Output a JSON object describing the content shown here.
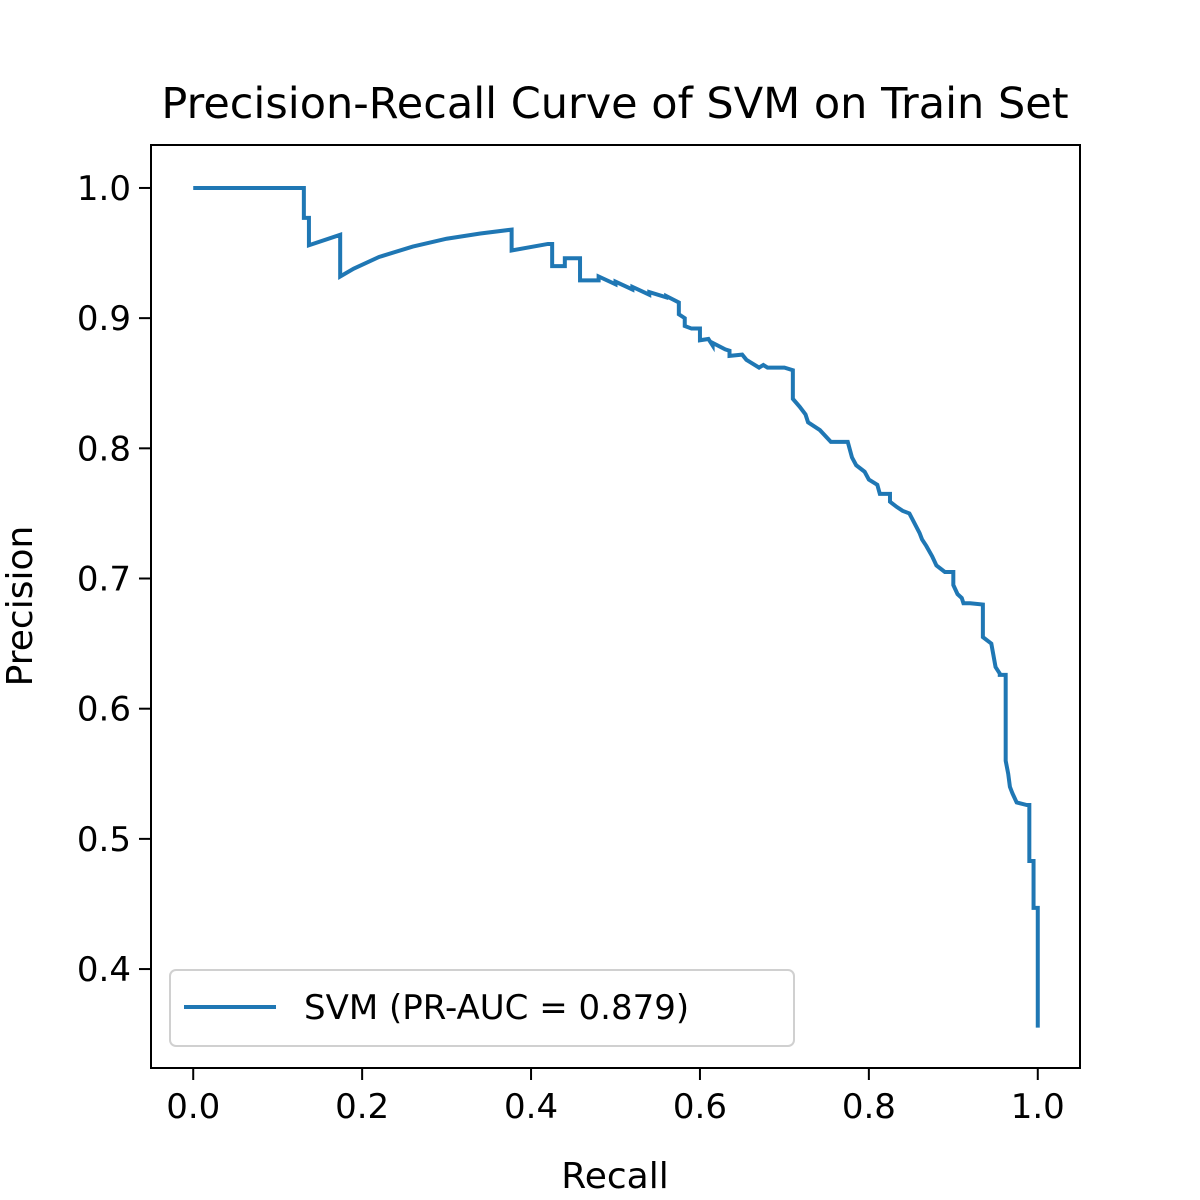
{
  "chart_data": {
    "type": "line",
    "title": "Precision-Recall Curve of SVM on Train Set",
    "xlabel": "Recall",
    "ylabel": "Precision",
    "xlim": [
      -0.05,
      1.05
    ],
    "ylim": [
      0.324,
      1.033
    ],
    "xticks": [
      {
        "value": 0.0,
        "label": "0.0"
      },
      {
        "value": 0.2,
        "label": "0.2"
      },
      {
        "value": 0.4,
        "label": "0.4"
      },
      {
        "value": 0.6,
        "label": "0.6"
      },
      {
        "value": 0.8,
        "label": "0.8"
      },
      {
        "value": 1.0,
        "label": "1.0"
      }
    ],
    "yticks": [
      {
        "value": 0.4,
        "label": "0.4"
      },
      {
        "value": 0.5,
        "label": "0.5"
      },
      {
        "value": 0.6,
        "label": "0.6"
      },
      {
        "value": 0.7,
        "label": "0.7"
      },
      {
        "value": 0.8,
        "label": "0.8"
      },
      {
        "value": 0.9,
        "label": "0.9"
      },
      {
        "value": 1.0,
        "label": "1.0"
      }
    ],
    "grid": false,
    "legend": {
      "position": "lower-left"
    },
    "series": [
      {
        "name": "SVM (PR-AUC = 0.879)",
        "color": "#1f77b4",
        "step": "post",
        "x": [
          0.0,
          0.131,
          0.131,
          0.137,
          0.137,
          0.174,
          0.174,
          0.19,
          0.22,
          0.26,
          0.3,
          0.34,
          0.377,
          0.377,
          0.42,
          0.425,
          0.425,
          0.44,
          0.44,
          0.458,
          0.458,
          0.48,
          0.48,
          0.5,
          0.5,
          0.52,
          0.52,
          0.54,
          0.54,
          0.56,
          0.56,
          0.575,
          0.575,
          0.582,
          0.582,
          0.59,
          0.6,
          0.6,
          0.61,
          0.615,
          0.615,
          0.63,
          0.635,
          0.635,
          0.65,
          0.655,
          0.66,
          0.67,
          0.675,
          0.68,
          0.7,
          0.71,
          0.71,
          0.718,
          0.725,
          0.728,
          0.735,
          0.742,
          0.755,
          0.755,
          0.775,
          0.78,
          0.785,
          0.795,
          0.8,
          0.81,
          0.813,
          0.825,
          0.825,
          0.833,
          0.84,
          0.848,
          0.86,
          0.863,
          0.868,
          0.875,
          0.88,
          0.89,
          0.9,
          0.9,
          0.905,
          0.91,
          0.912,
          0.92,
          0.935,
          0.935,
          0.945,
          0.95,
          0.955,
          0.955,
          0.962,
          0.962,
          0.965,
          0.967,
          0.97,
          0.975,
          0.987,
          0.99,
          0.99,
          0.995,
          0.995,
          1.0,
          1.0
        ],
        "y": [
          1.0,
          1.0,
          0.977,
          0.977,
          0.956,
          0.964,
          0.932,
          0.938,
          0.947,
          0.955,
          0.961,
          0.965,
          0.968,
          0.952,
          0.957,
          0.957,
          0.94,
          0.94,
          0.946,
          0.946,
          0.929,
          0.929,
          0.932,
          0.926,
          0.928,
          0.922,
          0.924,
          0.918,
          0.92,
          0.916,
          0.917,
          0.912,
          0.903,
          0.9,
          0.894,
          0.892,
          0.892,
          0.883,
          0.884,
          0.879,
          0.881,
          0.876,
          0.875,
          0.871,
          0.872,
          0.868,
          0.866,
          0.862,
          0.864,
          0.862,
          0.862,
          0.86,
          0.838,
          0.832,
          0.826,
          0.82,
          0.817,
          0.814,
          0.805,
          0.805,
          0.805,
          0.793,
          0.787,
          0.782,
          0.776,
          0.772,
          0.765,
          0.765,
          0.759,
          0.755,
          0.752,
          0.75,
          0.735,
          0.73,
          0.725,
          0.717,
          0.71,
          0.705,
          0.705,
          0.695,
          0.688,
          0.685,
          0.681,
          0.681,
          0.68,
          0.655,
          0.65,
          0.632,
          0.627,
          0.626,
          0.626,
          0.56,
          0.55,
          0.54,
          0.535,
          0.528,
          0.526,
          0.526,
          0.483,
          0.483,
          0.447,
          0.447,
          0.355
        ]
      }
    ]
  }
}
